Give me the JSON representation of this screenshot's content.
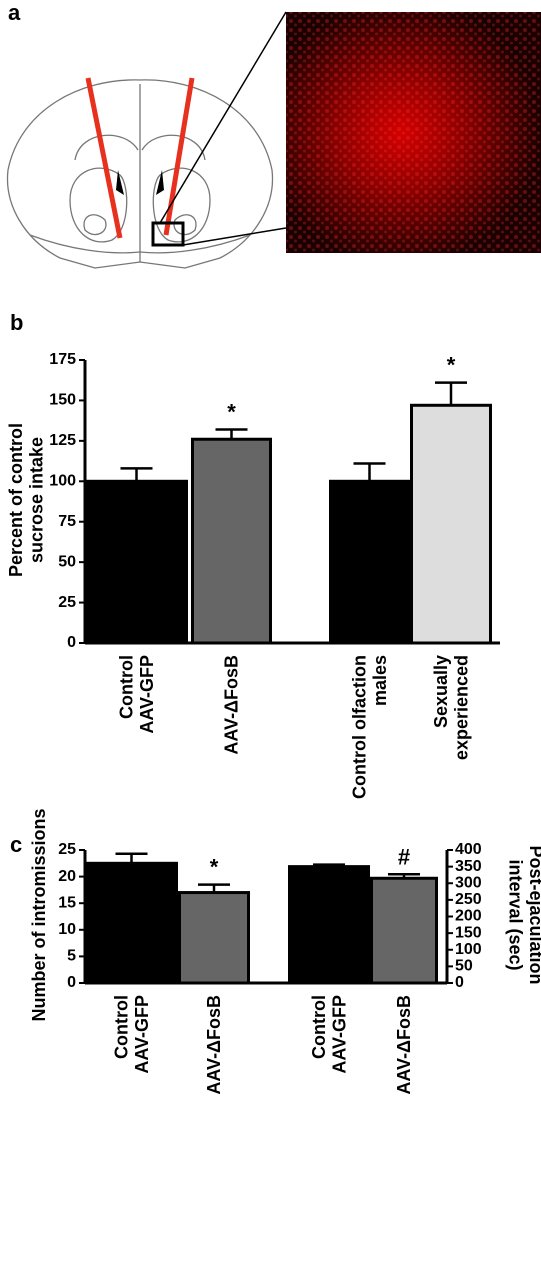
{
  "image_panel": {
    "label": "a"
  },
  "chart_data": [
    {
      "type": "bar",
      "label": "b",
      "ylabel": [
        "Percent of control",
        "sucrose intake"
      ],
      "categories": [
        [
          "Control",
          "AAV-GFP"
        ],
        [
          "AAV-ΔFosB"
        ],
        [
          "Control olfaction",
          "males"
        ],
        [
          "Sexually",
          "experienced"
        ]
      ],
      "colors": [
        "#000000",
        "#666666",
        "#000000",
        "#dddddd"
      ],
      "series": [
        {
          "axis": "y",
          "values": [
            100,
            126,
            100,
            147
          ],
          "errors": [
            8,
            6,
            11,
            14
          ]
        }
      ],
      "value_annotations": [
        null,
        "*",
        null,
        "*"
      ],
      "ylim": [
        0,
        175
      ],
      "yticks": [
        0,
        25,
        50,
        75,
        100,
        125,
        150,
        175
      ]
    },
    {
      "type": "bar",
      "label": "c",
      "ylabel": [
        "Number of intromissions"
      ],
      "y2label": [
        "Post-ejaculation",
        "interval (sec)"
      ],
      "categories": [
        [
          "Control",
          "AAV-GFP"
        ],
        [
          "AAV-ΔFosB"
        ],
        [
          "Control",
          "AAV-GFP"
        ],
        [
          "AAV-ΔFosB"
        ]
      ],
      "colors": [
        "#000000",
        "#666666",
        "#000000",
        "#666666"
      ],
      "series": [
        {
          "axis": "y",
          "values": [
            22.5,
            17,
            null,
            null
          ],
          "errors": [
            1.8,
            1.5,
            null,
            null
          ]
        },
        {
          "axis": "y2",
          "values": [
            null,
            null,
            350,
            315
          ],
          "errors": [
            null,
            null,
            6,
            12
          ]
        }
      ],
      "value_annotations": [
        null,
        "*",
        null,
        "#"
      ],
      "ylim": [
        0,
        25
      ],
      "yticks": [
        0,
        5,
        10,
        15,
        20,
        25
      ],
      "y2lim": [
        0,
        400
      ],
      "y2ticks": [
        0,
        50,
        100,
        150,
        200,
        250,
        300,
        350,
        400
      ]
    }
  ]
}
